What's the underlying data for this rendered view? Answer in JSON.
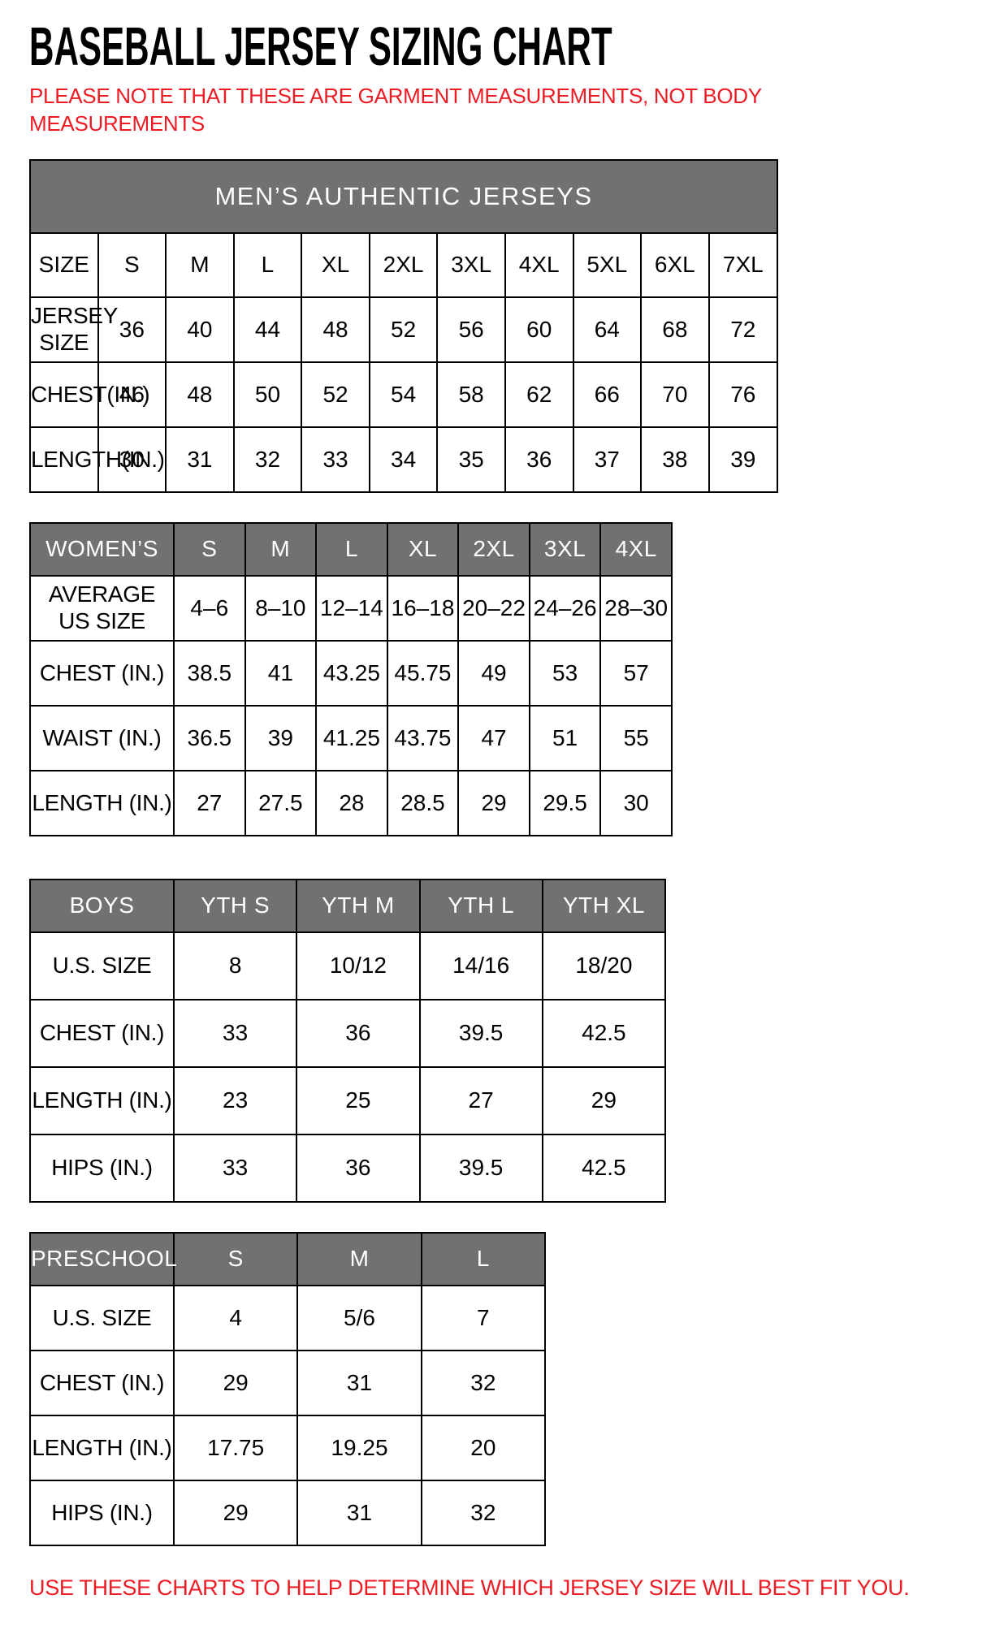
{
  "page": {
    "title": "BASEBALL JERSEY SIZING CHART",
    "note": "PLEASE NOTE THAT THESE ARE GARMENT MEASUREMENTS, NOT BODY MEASUREMENTS",
    "footer": "USE THESE CHARTS TO HELP DETERMINE WHICH JERSEY SIZE WILL BEST FIT YOU.",
    "colors": {
      "accent_red": "#ed1c24",
      "header_gray": "#717171",
      "border": "#000000"
    }
  },
  "tables": [
    {
      "id": "mens",
      "banner": "MEN’S AUTHENTIC JERSEYS",
      "white_header": [
        "SIZE",
        "S",
        "M",
        "L",
        "XL",
        "2XL",
        "3XL",
        "4XL",
        "5XL",
        "6XL",
        "7XL"
      ],
      "rows": [
        {
          "label": "JERSEY SIZE",
          "values": [
            "36",
            "40",
            "44",
            "48",
            "52",
            "56",
            "60",
            "64",
            "68",
            "72"
          ]
        },
        {
          "label": "CHEST(IN.)",
          "values": [
            "46",
            "48",
            "50",
            "52",
            "54",
            "58",
            "62",
            "66",
            "70",
            "76"
          ]
        },
        {
          "label": "LENGTH(IN.)",
          "values": [
            "30",
            "31",
            "32",
            "33",
            "34",
            "35",
            "36",
            "37",
            "38",
            "39"
          ]
        }
      ]
    },
    {
      "id": "womens",
      "gray_header": [
        "WOMEN’S",
        "S",
        "M",
        "L",
        "XL",
        "2XL",
        "3XL",
        "4XL"
      ],
      "rows": [
        {
          "label": "AVERAGE US SIZE",
          "values": [
            "4–6",
            "8–10",
            "12–14",
            "16–18",
            "20–22",
            "24–26",
            "28–30"
          ]
        },
        {
          "label": "CHEST (IN.)",
          "values": [
            "38.5",
            "41",
            "43.25",
            "45.75",
            "49",
            "53",
            "57"
          ]
        },
        {
          "label": "WAIST (IN.)",
          "values": [
            "36.5",
            "39",
            "41.25",
            "43.75",
            "47",
            "51",
            "55"
          ]
        },
        {
          "label": "LENGTH (IN.)",
          "values": [
            "27",
            "27.5",
            "28",
            "28.5",
            "29",
            "29.5",
            "30"
          ]
        }
      ]
    },
    {
      "id": "boys",
      "gray_header": [
        "BOYS",
        "YTH S",
        "YTH M",
        "YTH L",
        "YTH XL"
      ],
      "rows": [
        {
          "label": "U.S. SIZE",
          "values": [
            "8",
            "10/12",
            "14/16",
            "18/20"
          ]
        },
        {
          "label": "CHEST (IN.)",
          "values": [
            "33",
            "36",
            "39.5",
            "42.5"
          ]
        },
        {
          "label": "LENGTH (IN.)",
          "values": [
            "23",
            "25",
            "27",
            "29"
          ]
        },
        {
          "label": "HIPS (IN.)",
          "values": [
            "33",
            "36",
            "39.5",
            "42.5"
          ]
        }
      ]
    },
    {
      "id": "preschool",
      "gray_header": [
        "PRESCHOOL",
        "S",
        "M",
        "L"
      ],
      "rows": [
        {
          "label": "U.S. SIZE",
          "values": [
            "4",
            "5/6",
            "7"
          ]
        },
        {
          "label": "CHEST (IN.)",
          "values": [
            "29",
            "31",
            "32"
          ]
        },
        {
          "label": "LENGTH (IN.)",
          "values": [
            "17.75",
            "19.25",
            "20"
          ]
        },
        {
          "label": "HIPS (IN.)",
          "values": [
            "29",
            "31",
            "32"
          ]
        }
      ]
    }
  ]
}
